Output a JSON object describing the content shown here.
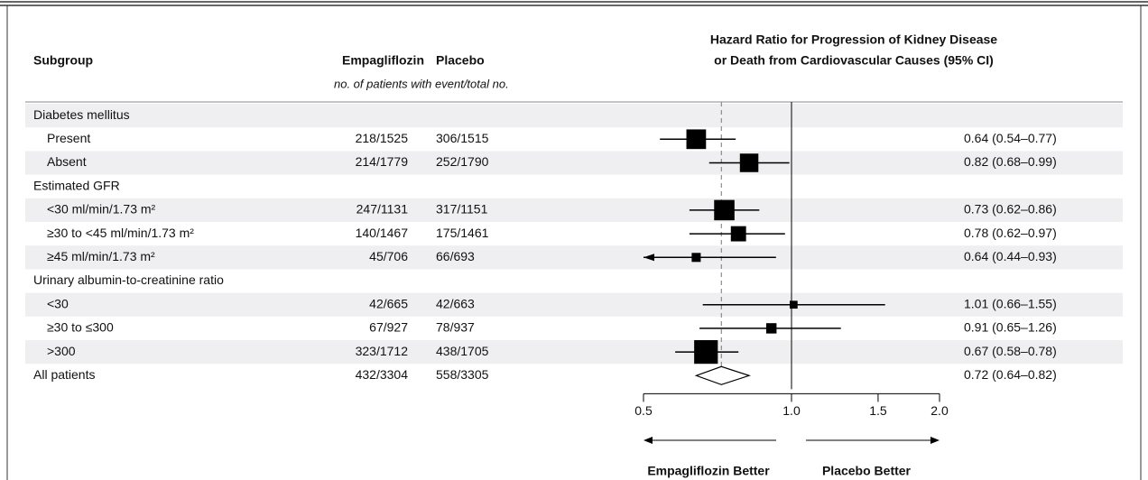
{
  "chart_data": {
    "type": "forest",
    "title": [
      "Hazard Ratio for Progression of Kidney Disease",
      "or Death from Cardiovascular Causes (95% CI)"
    ],
    "columns": {
      "subgroup": "Subgroup",
      "empagliflozin": "Empagliflozin",
      "placebo": "Placebo",
      "subheader": "no. of patients with event/total no."
    },
    "groups": [
      {
        "label": "Diabetes mellitus",
        "rows": [
          {
            "label": "Present",
            "empagliflozin": "218/1525",
            "placebo": "306/1515",
            "hr": 0.64,
            "lo": 0.54,
            "hi": 0.77,
            "value_label": "0.64 (0.54–0.77)"
          },
          {
            "label": "Absent",
            "empagliflozin": "214/1779",
            "placebo": "252/1790",
            "hr": 0.82,
            "lo": 0.68,
            "hi": 0.99,
            "value_label": "0.82 (0.68–0.99)"
          }
        ]
      },
      {
        "label": "Estimated GFR",
        "rows": [
          {
            "label": "<30 ml/min/1.73 m²",
            "empagliflozin": "247/1131",
            "placebo": "317/1151",
            "hr": 0.73,
            "lo": 0.62,
            "hi": 0.86,
            "value_label": "0.73 (0.62–0.86)"
          },
          {
            "label": "≥30 to <45 ml/min/1.73 m²",
            "empagliflozin": "140/1467",
            "placebo": "175/1461",
            "hr": 0.78,
            "lo": 0.62,
            "hi": 0.97,
            "value_label": "0.78 (0.62–0.97)"
          },
          {
            "label": "≥45 ml/min/1.73 m²",
            "empagliflozin": "45/706",
            "placebo": "66/693",
            "hr": 0.64,
            "lo": 0.44,
            "hi": 0.93,
            "value_label": "0.64 (0.44–0.93)"
          }
        ]
      },
      {
        "label": "Urinary albumin-to-creatinine ratio",
        "rows": [
          {
            "label": "<30",
            "empagliflozin": "42/665",
            "placebo": "42/663",
            "hr": 1.01,
            "lo": 0.66,
            "hi": 1.55,
            "value_label": "1.01 (0.66–1.55)"
          },
          {
            "label": "≥30 to ≤300",
            "empagliflozin": "67/927",
            "placebo": "78/937",
            "hr": 0.91,
            "lo": 0.65,
            "hi": 1.26,
            "value_label": "0.91 (0.65–1.26)"
          },
          {
            "label": ">300",
            "empagliflozin": "323/1712",
            "placebo": "438/1705",
            "hr": 0.67,
            "lo": 0.58,
            "hi": 0.78,
            "value_label": "0.67 (0.58–0.78)"
          }
        ]
      }
    ],
    "overall": {
      "label": "All patients",
      "empagliflozin": "432/3304",
      "placebo": "558/3305",
      "hr": 0.72,
      "lo": 0.64,
      "hi": 0.82,
      "value_label": "0.72 (0.64–0.82)"
    },
    "xscale": "log",
    "xlim": [
      0.5,
      2.0
    ],
    "xticks": [
      0.5,
      {
        "value": 1,
        "label": "1.0"
      },
      1.5,
      {
        "value": 2,
        "label": "2.0"
      }
    ],
    "left_label": "Empagliflozin Better",
    "right_label": "Placebo Better",
    "color": "#000000",
    "shade": "#efeff2"
  }
}
